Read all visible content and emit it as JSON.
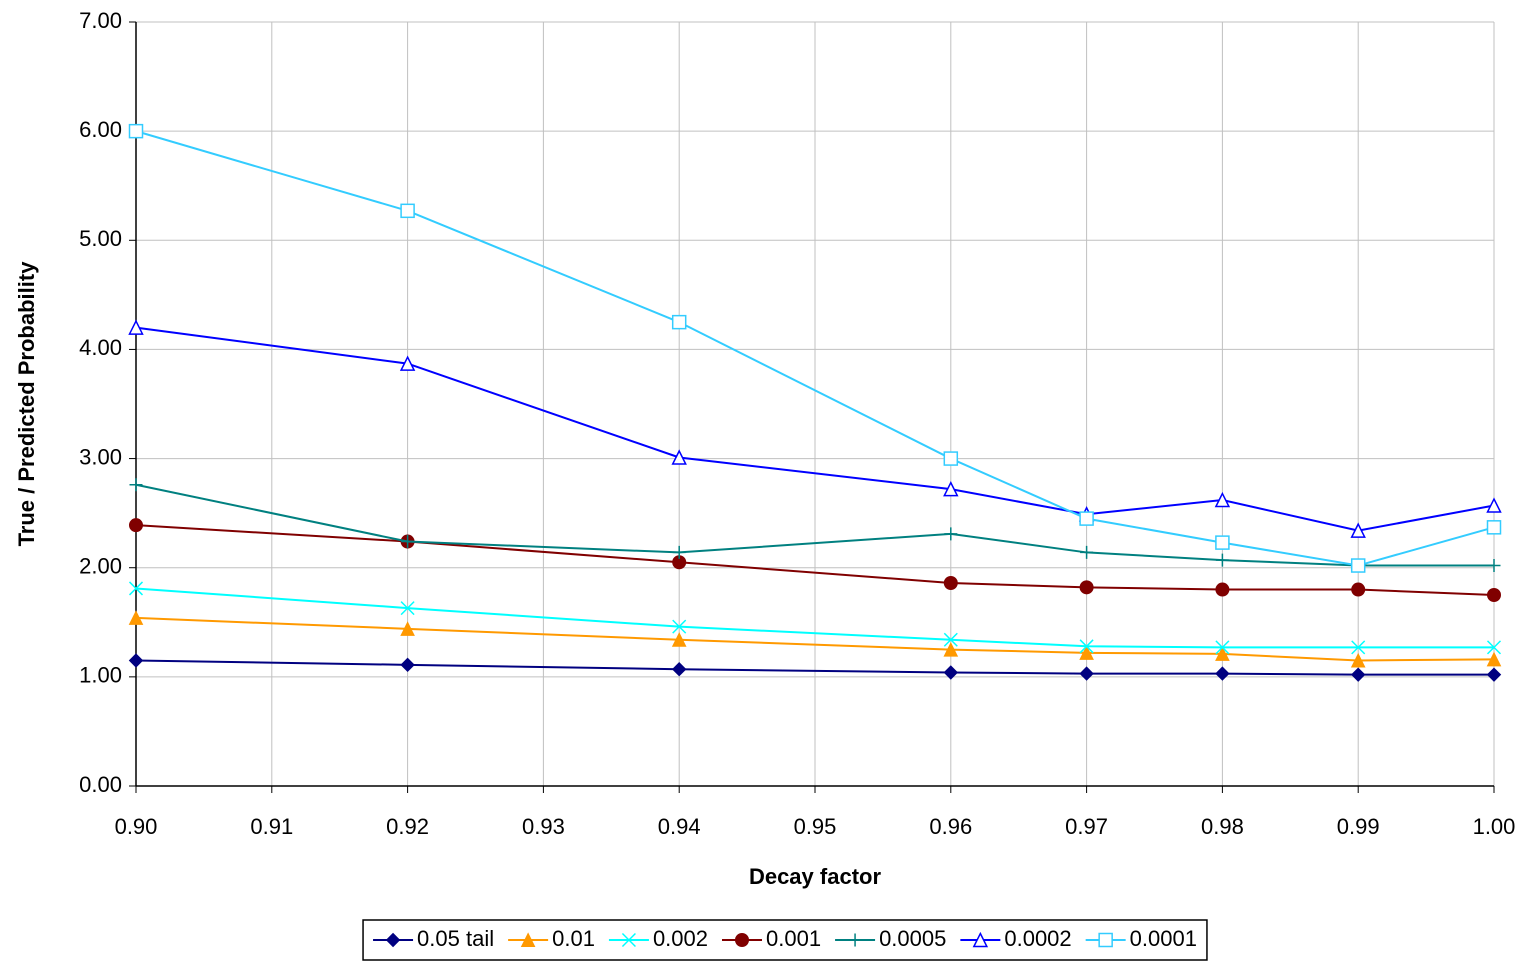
{
  "chart_data": {
    "type": "line",
    "x_label": "Decay factor",
    "y_label": "True / Predicted Probability",
    "x": [
      0.9,
      0.92,
      0.94,
      0.96,
      0.97,
      0.98,
      0.99,
      1.0
    ],
    "xlim": [
      0.9,
      1.0
    ],
    "xticks": [
      {
        "value": 0.9,
        "label": "0.90"
      },
      {
        "value": 0.91,
        "label": "0.91"
      },
      {
        "value": 0.92,
        "label": "0.92"
      },
      {
        "value": 0.93,
        "label": "0.93"
      },
      {
        "value": 0.94,
        "label": "0.94"
      },
      {
        "value": 0.95,
        "label": "0.95"
      },
      {
        "value": 0.96,
        "label": "0.96"
      },
      {
        "value": 0.97,
        "label": "0.97"
      },
      {
        "value": 0.98,
        "label": "0.98"
      },
      {
        "value": 0.99,
        "label": "0.99"
      },
      {
        "value": 1.0,
        "label": "1.00"
      }
    ],
    "ylim": [
      0,
      7
    ],
    "yticks": [
      {
        "value": 0,
        "label": "0.00"
      },
      {
        "value": 1,
        "label": "1.00"
      },
      {
        "value": 2,
        "label": "2.00"
      },
      {
        "value": 3,
        "label": "3.00"
      },
      {
        "value": 4,
        "label": "4.00"
      },
      {
        "value": 5,
        "label": "5.00"
      },
      {
        "value": 6,
        "label": "6.00"
      },
      {
        "value": 7,
        "label": "7.00"
      }
    ],
    "grid": true,
    "legend": "bottom",
    "series": [
      {
        "name": "0.05 tail",
        "color": "#000080",
        "marker": "diamond",
        "values": [
          1.15,
          1.11,
          1.07,
          1.04,
          1.03,
          1.03,
          1.02,
          1.02
        ]
      },
      {
        "name": "0.01",
        "color": "#ff9900",
        "marker": "triangle-filled",
        "values": [
          1.54,
          1.44,
          1.34,
          1.25,
          1.22,
          1.21,
          1.15,
          1.16
        ]
      },
      {
        "name": "0.002",
        "color": "#00ffff",
        "marker": "x",
        "values": [
          1.81,
          1.63,
          1.46,
          1.34,
          1.28,
          1.27,
          1.27,
          1.27
        ]
      },
      {
        "name": "0.001",
        "color": "#800000",
        "marker": "circle",
        "values": [
          2.39,
          2.24,
          2.05,
          1.86,
          1.82,
          1.8,
          1.8,
          1.75
        ]
      },
      {
        "name": "0.0005",
        "color": "#008080",
        "marker": "plus",
        "values": [
          2.76,
          2.24,
          2.14,
          2.31,
          2.14,
          2.07,
          2.02,
          2.02
        ]
      },
      {
        "name": "0.0002",
        "color": "#0000ff",
        "marker": "triangle-open",
        "values": [
          4.2,
          3.87,
          3.01,
          2.72,
          2.49,
          2.62,
          2.34,
          2.57
        ]
      },
      {
        "name": "0.0001",
        "color": "#33ccff",
        "marker": "square-open",
        "values": [
          6.0,
          5.27,
          4.25,
          3.0,
          2.45,
          2.23,
          2.02,
          2.37
        ]
      }
    ]
  }
}
